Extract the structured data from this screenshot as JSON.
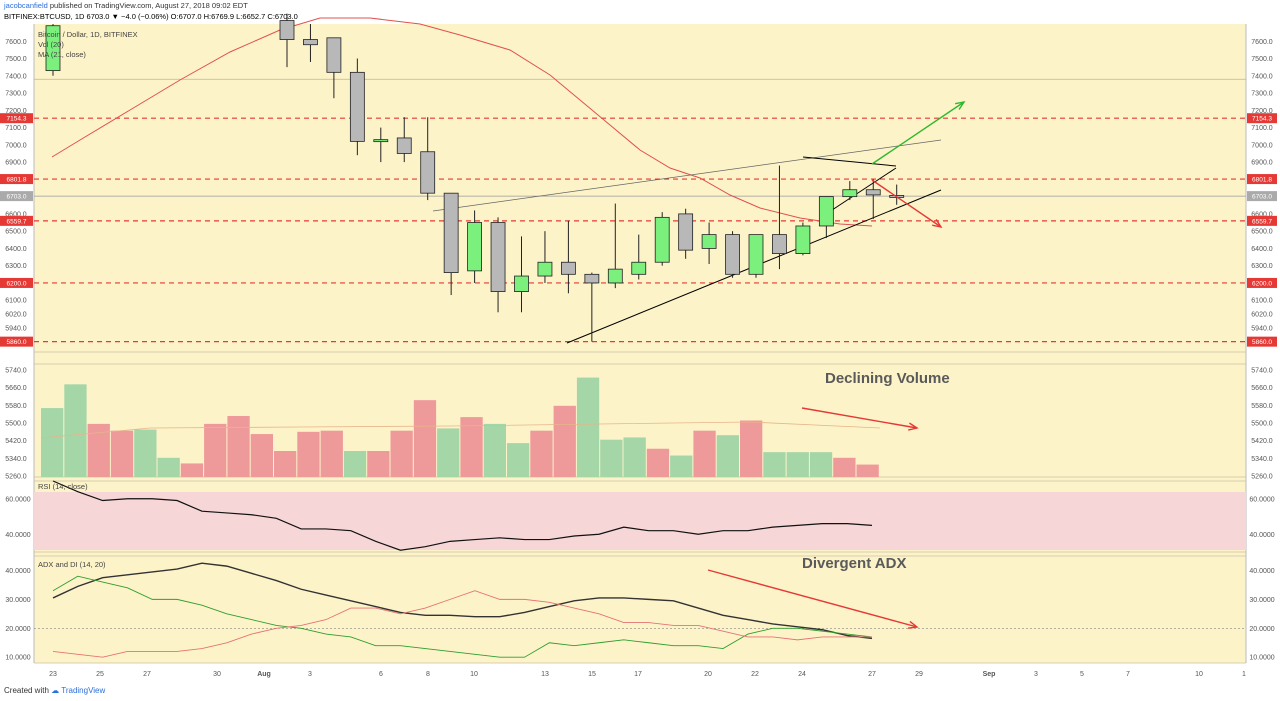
{
  "header": {
    "author": "jacobcanfield",
    "published": "published on TradingView.com, August 27, 2018 09:02 EDT",
    "symbol_line_prefix": "BITFINEX:BTCUSD, 1D",
    "ohlc": "6703.0 ▼ −4.0 (−0.06%) O:6707.0 H:6769.9 L:6652.7 C:6703.0"
  },
  "footer": {
    "created_with": "Created with",
    "brand": "TradingView"
  },
  "legend": {
    "main": "Bitcoin / Dollar, 1D, BITFINEX",
    "vol": "Vol (20)",
    "ma": "MA (21, close)",
    "rsi": "RSI (14, close)",
    "adx": "ADX and DI (14, 20)"
  },
  "annotations": {
    "volume": "Declining Volume",
    "adx": "Divergent ADX"
  },
  "colors": {
    "background": "#fdf3c9",
    "bull_candle": "#7cf07c",
    "bear_candle": "#b8b8b8",
    "bull_volume": "#a5d6a7",
    "bear_volume": "#ef9a9a",
    "ma_line": "#e05050",
    "level_line": "#e53935",
    "arrow_red": "#e53935",
    "arrow_green": "#2eb82e",
    "rsi_band": "#f6d6d6"
  },
  "chart_data": [
    {
      "type": "candlestick",
      "title": "Bitcoin / Dollar, 1D, BITFINEX",
      "ylim": [
        5800,
        7700
      ],
      "y_ticks": [
        7600,
        7500,
        7400,
        7300,
        7200,
        7100,
        7000,
        6900,
        6800,
        6700,
        6600,
        6500,
        6400,
        6300,
        6200,
        6100,
        6020,
        5940,
        5860
      ],
      "x_ticks": [
        "23",
        "25",
        "27",
        "30",
        "Aug",
        "3",
        "6",
        "8",
        "10",
        "13",
        "15",
        "17",
        "20",
        "22",
        "24",
        "27",
        "29",
        "Sep",
        "3",
        "5",
        "7",
        "10",
        "1"
      ],
      "price_levels": [
        7154.3,
        6801.8,
        6559.7,
        6200.0,
        5860.0
      ],
      "current_price": 6703.0,
      "candles": [
        {
          "date": "Jul 24",
          "o": 7430,
          "h": 7700,
          "l": 7400,
          "c": 7690
        },
        {
          "date": "Aug 1",
          "o": 7720,
          "h": 7760,
          "l": 7450,
          "c": 7610
        },
        {
          "date": "Aug 2",
          "o": 7610,
          "h": 7700,
          "l": 7480,
          "c": 7580
        },
        {
          "date": "Aug 3",
          "o": 7620,
          "h": 7620,
          "l": 7270,
          "c": 7420
        },
        {
          "date": "Aug 4",
          "o": 7420,
          "h": 7500,
          "l": 6940,
          "c": 7020
        },
        {
          "date": "Aug 5",
          "o": 7020,
          "h": 7100,
          "l": 6900,
          "c": 7030
        },
        {
          "date": "Aug 6",
          "o": 7040,
          "h": 7160,
          "l": 6900,
          "c": 6950
        },
        {
          "date": "Aug 7",
          "o": 6960,
          "h": 7160,
          "l": 6680,
          "c": 6720
        },
        {
          "date": "Aug 8",
          "o": 6720,
          "h": 6720,
          "l": 6130,
          "c": 6260
        },
        {
          "date": "Aug 9",
          "o": 6270,
          "h": 6620,
          "l": 6200,
          "c": 6550
        },
        {
          "date": "Aug 10",
          "o": 6550,
          "h": 6580,
          "l": 6030,
          "c": 6150
        },
        {
          "date": "Aug 11",
          "o": 6150,
          "h": 6470,
          "l": 6030,
          "c": 6240
        },
        {
          "date": "Aug 12",
          "o": 6240,
          "h": 6500,
          "l": 6200,
          "c": 6320
        },
        {
          "date": "Aug 13",
          "o": 6320,
          "h": 6560,
          "l": 6140,
          "c": 6250
        },
        {
          "date": "Aug 14",
          "o": 6250,
          "h": 6260,
          "l": 5860,
          "c": 6200
        },
        {
          "date": "Aug 15",
          "o": 6200,
          "h": 6660,
          "l": 6170,
          "c": 6280
        },
        {
          "date": "Aug 16",
          "o": 6250,
          "h": 6480,
          "l": 6220,
          "c": 6320
        },
        {
          "date": "Aug 17",
          "o": 6320,
          "h": 6610,
          "l": 6300,
          "c": 6580
        },
        {
          "date": "Aug 18",
          "o": 6600,
          "h": 6630,
          "l": 6340,
          "c": 6390
        },
        {
          "date": "Aug 19",
          "o": 6400,
          "h": 6550,
          "l": 6310,
          "c": 6480
        },
        {
          "date": "Aug 20",
          "o": 6480,
          "h": 6500,
          "l": 6230,
          "c": 6250
        },
        {
          "date": "Aug 21",
          "o": 6250,
          "h": 6480,
          "l": 6230,
          "c": 6480
        },
        {
          "date": "Aug 22",
          "o": 6480,
          "h": 6880,
          "l": 6280,
          "c": 6370
        },
        {
          "date": "Aug 23",
          "o": 6370,
          "h": 6550,
          "l": 6360,
          "c": 6530
        },
        {
          "date": "Aug 24",
          "o": 6530,
          "h": 6700,
          "l": 6460,
          "c": 6700
        },
        {
          "date": "Aug 25",
          "o": 6700,
          "h": 6790,
          "l": 6680,
          "c": 6740
        },
        {
          "date": "Aug 26",
          "o": 6740,
          "h": 6800,
          "l": 6570,
          "c": 6710
        },
        {
          "date": "Aug 27",
          "o": 6707,
          "h": 6769.9,
          "l": 6652.7,
          "c": 6703
        }
      ]
    },
    {
      "type": "bar",
      "title": "Vol (20)",
      "y_ticks": [
        5740,
        5660,
        5580,
        5500,
        5420,
        5340,
        5260
      ],
      "values": [
        0.61,
        0.82,
        0.47,
        0.41,
        0.42,
        0.17,
        0.12,
        0.47,
        0.54,
        0.38,
        0.23,
        0.4,
        0.41,
        0.23,
        0.23,
        0.41,
        0.68,
        0.43,
        0.53,
        0.47,
        0.3,
        0.41,
        0.63,
        0.88,
        0.33,
        0.35,
        0.25,
        0.19,
        0.41,
        0.37,
        0.5,
        0.22,
        0.22,
        0.22,
        0.17,
        0.11
      ],
      "bull": [
        true,
        true,
        false,
        false,
        true,
        true,
        false,
        false,
        false,
        false,
        false,
        false,
        false,
        true,
        false,
        false,
        false,
        true,
        false,
        true,
        true,
        false,
        false,
        true,
        true,
        true,
        false,
        true,
        false,
        true,
        false,
        true,
        true,
        true,
        false,
        false
      ]
    },
    {
      "type": "line",
      "title": "RSI (14, close)",
      "y_ticks": [
        "60.0000",
        "40.0000"
      ],
      "ylim": [
        30,
        70
      ],
      "values": [
        70,
        64,
        59,
        60,
        60,
        59,
        53,
        52,
        51,
        49,
        43,
        43,
        42,
        36,
        31,
        33,
        36,
        37,
        38,
        37,
        37,
        39,
        40,
        44,
        42,
        42,
        40,
        42,
        42,
        44,
        45,
        46,
        46,
        45
      ]
    },
    {
      "type": "line",
      "title": "ADX and DI (14, 20)",
      "y_ticks": [
        "40.0000",
        "30.0000",
        "20.0000",
        "10.0000"
      ],
      "ylim": [
        8,
        45
      ],
      "series": [
        {
          "values": [
            30.5,
            34.5,
            37.5,
            38.5,
            39.5,
            40.5,
            42.5,
            41.5,
            39.0,
            36.5,
            33.5,
            31.5,
            29.5,
            27.5,
            25.5,
            24.5,
            24.5,
            24.0,
            24.0,
            25.5,
            27.5,
            29.5,
            30.5,
            30.5,
            30.0,
            29.5,
            27.0,
            24.5,
            23.0,
            21.5,
            20.5,
            19.5,
            17.5,
            16.5
          ]
        },
        {
          "values": [
            33,
            38,
            36,
            34,
            30,
            30,
            28,
            25,
            23,
            21,
            20,
            18,
            17,
            14,
            14,
            13,
            12,
            11,
            10,
            10,
            15,
            14,
            15,
            16,
            15,
            14,
            14,
            13,
            18,
            20,
            20,
            19,
            18,
            17
          ]
        },
        {
          "values": [
            12,
            11,
            10,
            12,
            12,
            12,
            13,
            15,
            18,
            20,
            21,
            23,
            27,
            27,
            25,
            27,
            30,
            33,
            30,
            30,
            29,
            27,
            25,
            22,
            22,
            21,
            21,
            19,
            17,
            17,
            16,
            17,
            17,
            17
          ]
        }
      ]
    }
  ]
}
